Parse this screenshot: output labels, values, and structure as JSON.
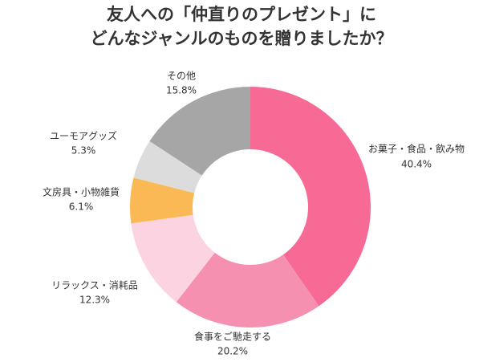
{
  "chart_data": {
    "type": "donut",
    "title": [
      "友人への「仲直りのプレゼント」に",
      "どんなジャンルのものを贈りましたか？"
    ],
    "categories": [
      "お菓子・食品・飲み物",
      "食事をご馳走する",
      "リラックス・消耗品",
      "文房具・小物雑貨",
      "ユーモアグッズ",
      "その他"
    ],
    "values": [
      40.4,
      20.2,
      12.3,
      6.1,
      5.3,
      15.8
    ],
    "value_labels": [
      "40.4%",
      "20.2%",
      "12.3%",
      "6.1%",
      "5.3%",
      "15.8%"
    ],
    "colors": [
      "#f76a96",
      "#f590b0",
      "#fcd3e0",
      "#fbb955",
      "#dcdcdc",
      "#a6a6a6"
    ]
  }
}
